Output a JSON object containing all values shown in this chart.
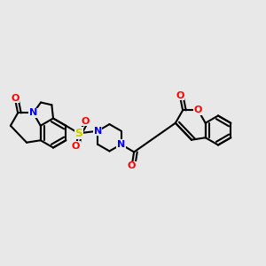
{
  "background_color": "#e8e8e8",
  "bond_color": "#000000",
  "bond_width": 1.5,
  "atom_colors": {
    "N": "#0000ff",
    "O": "#ff0000",
    "S": "#cccc00",
    "C": "#000000"
  },
  "font_size": 8,
  "figsize": [
    3.0,
    3.0
  ],
  "dpi": 100
}
